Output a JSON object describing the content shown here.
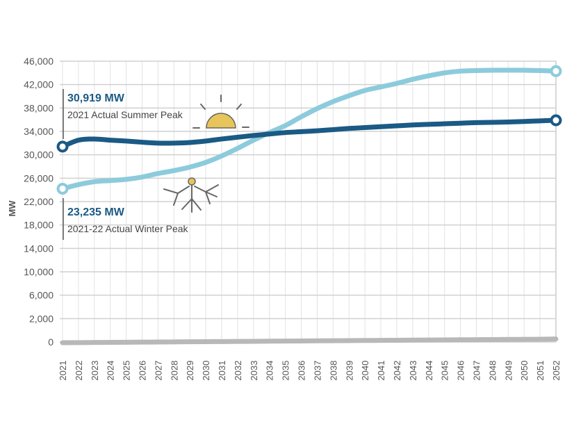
{
  "chart_data": {
    "type": "line",
    "title": "",
    "xlabel": "",
    "ylabel": "MW",
    "y_tick_labels": [
      "0",
      "2,000",
      "6,000",
      "10,000",
      "14,000",
      "18,000",
      "22,000",
      "26,000",
      "30,000",
      "34,000",
      "38,000",
      "42,000",
      "46,000"
    ],
    "y_ticks": [
      0,
      2000,
      6000,
      10000,
      14000,
      18000,
      22000,
      26000,
      30000,
      34000,
      38000,
      42000,
      46000
    ],
    "ylim": [
      0,
      46000
    ],
    "grid": true,
    "legend": "none",
    "x": [
      "2021",
      "2022",
      "2023",
      "2024",
      "2025",
      "2026",
      "2027",
      "2028",
      "2029",
      "2030",
      "2031",
      "2032",
      "2033",
      "2034",
      "2035",
      "2036",
      "2037",
      "2038",
      "2039",
      "2040",
      "2041",
      "2042",
      "2043",
      "2044",
      "2045",
      "2046",
      "2047",
      "2048",
      "2049",
      "2050",
      "2051",
      "2052"
    ],
    "series": [
      {
        "color": "#1a5a85",
        "values": [
          31400,
          32500,
          32700,
          32500,
          32350,
          32150,
          32000,
          32000,
          32100,
          32350,
          32700,
          33000,
          33300,
          33550,
          33800,
          33950,
          34100,
          34300,
          34500,
          34650,
          34800,
          34950,
          35100,
          35200,
          35300,
          35400,
          35500,
          35550,
          35600,
          35700,
          35800,
          35900
        ]
      },
      {
        "color": "#8ccbdc",
        "values": [
          24200,
          24900,
          25400,
          25600,
          25800,
          26200,
          26800,
          27300,
          27900,
          28700,
          29800,
          31100,
          32500,
          33800,
          35000,
          36500,
          37900,
          39100,
          40100,
          41000,
          41600,
          42200,
          42900,
          43500,
          44000,
          44300,
          44400,
          44450,
          44450,
          44450,
          44400,
          44300
        ]
      },
      {
        "color": "#b8b8b8",
        "values": [
          0,
          10,
          20,
          30,
          40,
          50,
          60,
          70,
          80,
          90,
          100,
          110,
          120,
          130,
          140,
          150,
          160,
          170,
          180,
          190,
          200,
          210,
          220,
          230,
          240,
          250,
          260,
          270,
          280,
          290,
          300,
          320
        ]
      }
    ],
    "annotations": [
      {
        "value": "30,919 MW",
        "text": "2021 Actual Summer Peak",
        "icon": "sun-icon",
        "color": "#e8c55a"
      },
      {
        "value": "23,235 MW",
        "text": "2021-22 Actual Winter Peak",
        "icon": "snowflake-icon",
        "color": "#e8c55a"
      }
    ]
  }
}
